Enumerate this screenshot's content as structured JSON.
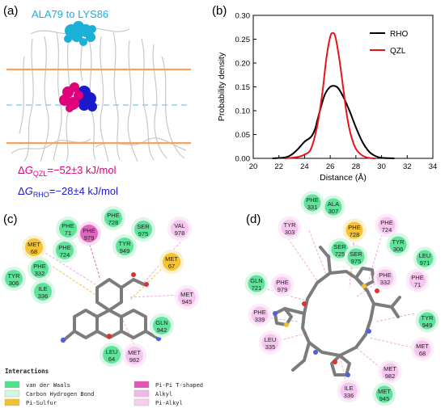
{
  "panels": {
    "a": "(a)",
    "b": "(b)",
    "c": "(c)",
    "d": "(d)"
  },
  "panel_a": {
    "range_label": "ALA79 to LYS86",
    "energy_qzl": {
      "prefix": "Δ",
      "G": "G",
      "sub": "QZL",
      "value": "=−52±3 kJ/mol"
    },
    "energy_rho": {
      "prefix": "Δ",
      "G": "G",
      "sub": "RHO",
      "value": "=−28±4 kJ/mol"
    },
    "colors": {
      "qzl": "#e0007a",
      "rho": "#1a1acc",
      "membrane": "#f5a25d",
      "cyan": "#1ab0d8"
    }
  },
  "chart_data": {
    "type": "line",
    "xlabel": "Distance (Å)",
    "ylabel": "Probability density",
    "xlim": [
      20,
      34
    ],
    "ylim": [
      0,
      0.3
    ],
    "xticks": [
      "20",
      "22",
      "24",
      "26",
      "28",
      "30",
      "32",
      "34"
    ],
    "yticks": [
      "0.00",
      "0.05",
      "0.10",
      "0.15",
      "0.20",
      "0.25",
      "0.30"
    ],
    "legend_position": "top-right",
    "series": [
      {
        "name": "RHO",
        "color": "#000000",
        "x": [
          21.5,
          22.5,
          23.0,
          23.5,
          24.0,
          24.5,
          24.8,
          25.0,
          25.3,
          25.6,
          26.0,
          26.3,
          26.6,
          27.0,
          27.5,
          28.0,
          28.5,
          29.0,
          29.5,
          30.0,
          31.0
        ],
        "y": [
          0.0,
          0.002,
          0.008,
          0.02,
          0.035,
          0.045,
          0.06,
          0.08,
          0.11,
          0.135,
          0.15,
          0.152,
          0.148,
          0.13,
          0.1,
          0.065,
          0.035,
          0.015,
          0.005,
          0.001,
          0.0
        ]
      },
      {
        "name": "QZL",
        "color": "#e8141a",
        "x": [
          22.5,
          23.5,
          24.0,
          24.5,
          25.0,
          25.4,
          25.7,
          26.0,
          26.2,
          26.4,
          26.7,
          27.0,
          27.3,
          27.6,
          28.0,
          28.5,
          29.0,
          29.5
        ],
        "y": [
          0.0,
          0.003,
          0.008,
          0.02,
          0.07,
          0.14,
          0.21,
          0.255,
          0.263,
          0.255,
          0.21,
          0.15,
          0.09,
          0.05,
          0.02,
          0.006,
          0.001,
          0.0
        ]
      }
    ]
  },
  "panel_c": {
    "residues": [
      {
        "name": "PHE",
        "num": "71",
        "type": "vdw"
      },
      {
        "name": "PHE",
        "num": "728",
        "type": "vdw"
      },
      {
        "name": "SER",
        "num": "975",
        "type": "vdw"
      },
      {
        "name": "PHE",
        "num": "979",
        "type": "pipi"
      },
      {
        "name": "TYR",
        "num": "949",
        "type": "vdw"
      },
      {
        "name": "VAL",
        "num": "978",
        "type": "pialkyl"
      },
      {
        "name": "MET",
        "num": "68",
        "type": "sulfur"
      },
      {
        "name": "MET",
        "num": "67",
        "type": "sulfur"
      },
      {
        "name": "PHE",
        "num": "724",
        "type": "vdw"
      },
      {
        "name": "PHE",
        "num": "332",
        "type": "vdw"
      },
      {
        "name": "TYR",
        "num": "306",
        "type": "vdw"
      },
      {
        "name": "ILE",
        "num": "336",
        "type": "vdw"
      },
      {
        "name": "MET",
        "num": "945",
        "type": "pialkyl"
      },
      {
        "name": "GLN",
        "num": "942",
        "type": "vdw"
      },
      {
        "name": "LEU",
        "num": "64",
        "type": "vdw"
      },
      {
        "name": "MET",
        "num": "982",
        "type": "pialkyl"
      }
    ]
  },
  "panel_d": {
    "residues": [
      {
        "name": "PHE",
        "num": "331",
        "type": "vdw"
      },
      {
        "name": "ALA",
        "num": "307",
        "type": "vdw"
      },
      {
        "name": "TYR",
        "num": "303",
        "type": "pialkyl"
      },
      {
        "name": "PHE",
        "num": "728",
        "type": "sulfur"
      },
      {
        "name": "PHE",
        "num": "724",
        "type": "pialkyl"
      },
      {
        "name": "SER",
        "num": "725",
        "type": "vdw"
      },
      {
        "name": "TYR",
        "num": "306",
        "type": "vdw"
      },
      {
        "name": "SER",
        "num": "975",
        "type": "vdw"
      },
      {
        "name": "LEU",
        "num": "971",
        "type": "vdw"
      },
      {
        "name": "PHE",
        "num": "332",
        "type": "pialkyl"
      },
      {
        "name": "PHE",
        "num": "71",
        "type": "pialkyl"
      },
      {
        "name": "GLN",
        "num": "721",
        "type": "vdw"
      },
      {
        "name": "PHE",
        "num": "979",
        "type": "pialkyl"
      },
      {
        "name": "PHE",
        "num": "339",
        "type": "pialkyl"
      },
      {
        "name": "TYR",
        "num": "949",
        "type": "vdw"
      },
      {
        "name": "LEU",
        "num": "335",
        "type": "pialkyl"
      },
      {
        "name": "MET",
        "num": "68",
        "type": "pialkyl"
      },
      {
        "name": "MET",
        "num": "982",
        "type": "pialkyl"
      },
      {
        "name": "ILE",
        "num": "336",
        "type": "pialkyl"
      },
      {
        "name": "MET",
        "num": "945",
        "type": "vdw"
      }
    ]
  },
  "interactions": {
    "title": "Interactions",
    "items": [
      {
        "label": "van der Waals",
        "color": "#4fe08c"
      },
      {
        "label": "Carbon Hydrogen Bond",
        "color": "#d6f5e0"
      },
      {
        "label": "Pi-Sulfur",
        "color": "#f2c12e"
      },
      {
        "label": "Pi-Pi T-shaped",
        "color": "#e056b4"
      },
      {
        "label": "Alkyl",
        "color": "#f2b8e6"
      },
      {
        "label": "Pi-Alkyl",
        "color": "#f7cdf0"
      }
    ]
  },
  "type_colors": {
    "vdw": {
      "fill": "#5fe39a",
      "halo": "#d9f7e6"
    },
    "pipi": {
      "fill": "#e066be",
      "halo": "#fbe0f4"
    },
    "sulfur": {
      "fill": "#f4c232",
      "halo": "#fdf1cc"
    },
    "pialkyl": {
      "fill": "#f6c6ef",
      "halo": "#fcebf9"
    }
  }
}
